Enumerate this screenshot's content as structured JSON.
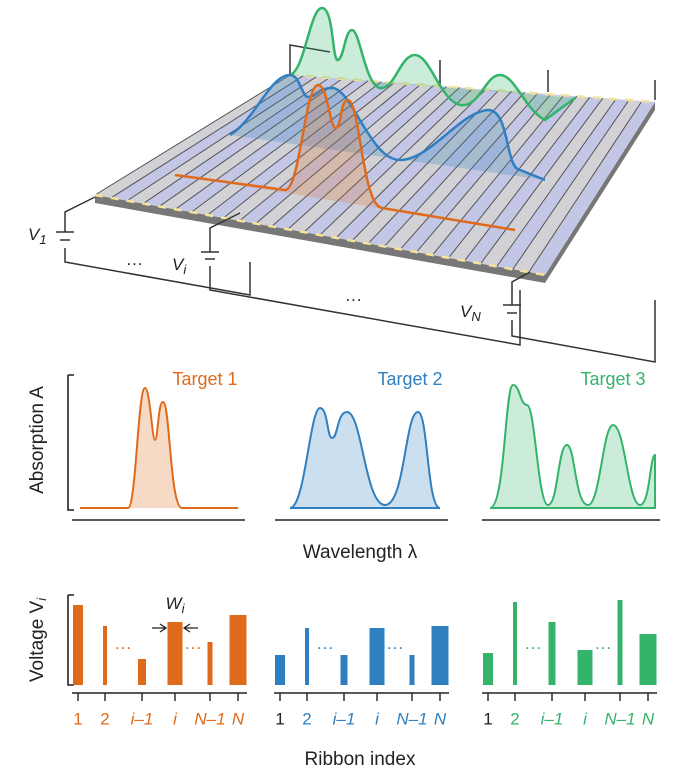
{
  "device": {
    "voltages": [
      {
        "base": "V",
        "sub": "1"
      },
      {
        "base": "V",
        "sub": "i"
      },
      {
        "base": "V",
        "sub": "N"
      }
    ],
    "ellipsis": "···"
  },
  "spectra": {
    "y_label": "Absorption A",
    "x_label": "Wavelength λ",
    "targets": [
      "Target 1",
      "Target 2",
      "Target 3"
    ]
  },
  "voltage_panels": {
    "y_label": {
      "base": "Voltage V",
      "sub": "i"
    },
    "width_label": {
      "base": "W",
      "sub": "i"
    },
    "ellipsis": "···",
    "tick_labels": [
      [
        "1",
        "2",
        "i–1",
        "i",
        "N–1",
        "N"
      ],
      [
        "1",
        "2",
        "i–1",
        "i",
        "N–1",
        "N"
      ],
      [
        "1",
        "2",
        "i–1",
        "i",
        "N–1",
        "N"
      ]
    ],
    "x_label": "Ribbon index"
  }
}
